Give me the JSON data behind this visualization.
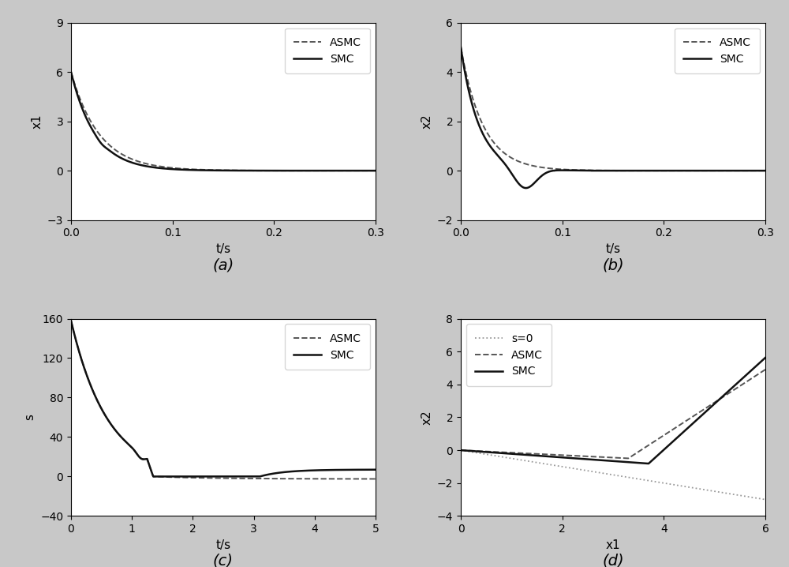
{
  "fig_width": 10.0,
  "fig_height": 7.18,
  "background_color": "#c8c8c8",
  "subplot_bg": "#ffffff",
  "plot_a": {
    "title": "(a)",
    "xlabel": "t/s",
    "ylabel": "x1",
    "xlim": [
      0,
      0.3
    ],
    "ylim": [
      -3,
      9
    ],
    "yticks": [
      -3,
      0,
      3,
      6,
      9
    ],
    "xticks": [
      0,
      0.1,
      0.2,
      0.3
    ],
    "asmc_color": "#555555",
    "smc_color": "#111111"
  },
  "plot_b": {
    "title": "(b)",
    "xlabel": "t/s",
    "ylabel": "x2",
    "xlim": [
      0,
      0.3
    ],
    "ylim": [
      -2,
      6
    ],
    "yticks": [
      -2,
      0,
      2,
      4,
      6
    ],
    "xticks": [
      0,
      0.1,
      0.2,
      0.3
    ],
    "asmc_color": "#555555",
    "smc_color": "#111111"
  },
  "plot_c": {
    "title": "(c)",
    "xlabel": "t/s",
    "ylabel": "s",
    "xlim": [
      0,
      5
    ],
    "ylim": [
      -40,
      160
    ],
    "yticks": [
      -40,
      0,
      40,
      80,
      120,
      160
    ],
    "xticks": [
      0,
      1,
      2,
      3,
      4,
      5
    ],
    "asmc_color": "#555555",
    "smc_color": "#111111"
  },
  "plot_d": {
    "title": "(d)",
    "xlabel": "x1",
    "ylabel": "x2",
    "xlim": [
      0,
      6
    ],
    "ylim": [
      -4,
      8
    ],
    "yticks": [
      -4,
      -2,
      0,
      2,
      4,
      6,
      8
    ],
    "xticks": [
      0,
      2,
      4,
      6
    ],
    "s0_color": "#999999",
    "asmc_color": "#555555",
    "smc_color": "#111111"
  }
}
